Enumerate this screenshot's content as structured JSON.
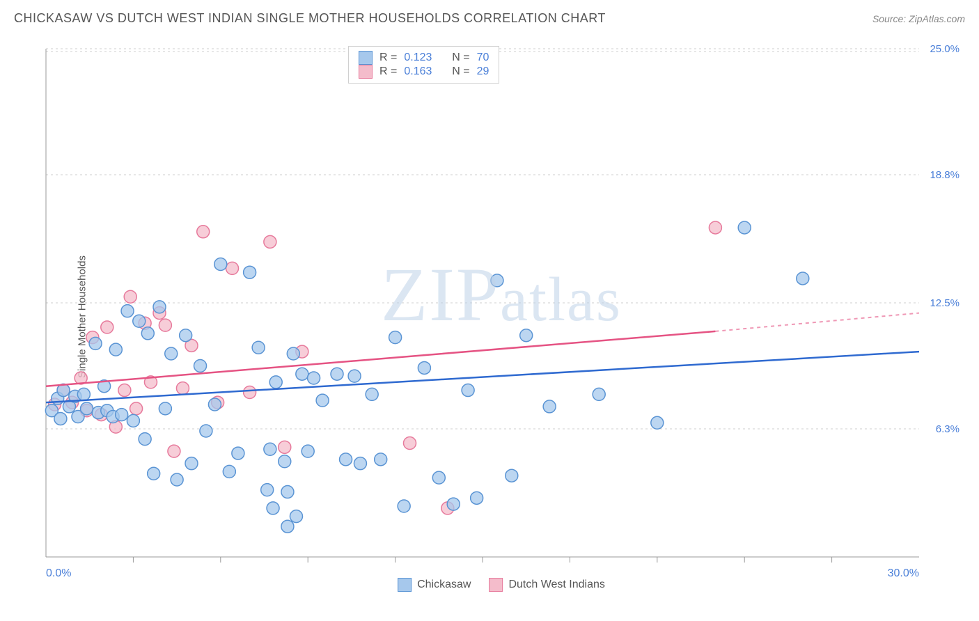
{
  "header": {
    "title": "CHICKASAW VS DUTCH WEST INDIAN SINGLE MOTHER HOUSEHOLDS CORRELATION CHART",
    "source_label": "Source: ",
    "source_name": "ZipAtlas.com"
  },
  "chart": {
    "type": "scatter",
    "ylabel": "Single Mother Households",
    "watermark": "ZIPatlas",
    "background_color": "#ffffff",
    "grid_color": "#cfcfcf",
    "axis_color": "#999999",
    "marker_radius": 9,
    "xlim": [
      0,
      30
    ],
    "ylim": [
      0,
      25
    ],
    "xticks_minor": [
      3,
      6,
      9,
      12,
      15,
      18,
      21,
      24,
      27
    ],
    "xtick_labels": [
      {
        "v": 0,
        "label": "0.0%"
      },
      {
        "v": 30,
        "label": "30.0%"
      }
    ],
    "ytick_labels": [
      {
        "v": 6.3,
        "label": "6.3%"
      },
      {
        "v": 12.5,
        "label": "12.5%"
      },
      {
        "v": 18.8,
        "label": "18.8%"
      },
      {
        "v": 25.0,
        "label": "25.0%"
      }
    ],
    "series": [
      {
        "id": "chickasaw",
        "label": "Chickasaw",
        "color_fill": "#a6c8ec",
        "color_stroke": "#5a94d4",
        "line_color": "#2f6ad0",
        "r_value": "0.123",
        "n_value": "70",
        "trend": {
          "x0": 0,
          "y0": 7.6,
          "x1": 30,
          "y1": 10.1
        },
        "points": [
          [
            0.2,
            7.2
          ],
          [
            0.4,
            7.8
          ],
          [
            0.5,
            6.8
          ],
          [
            0.6,
            8.2
          ],
          [
            0.8,
            7.4
          ],
          [
            1.0,
            7.9
          ],
          [
            1.1,
            6.9
          ],
          [
            1.3,
            8.0
          ],
          [
            1.4,
            7.3
          ],
          [
            1.7,
            10.5
          ],
          [
            1.8,
            7.1
          ],
          [
            2.0,
            8.4
          ],
          [
            2.1,
            7.2
          ],
          [
            2.3,
            6.9
          ],
          [
            2.4,
            10.2
          ],
          [
            2.6,
            7.0
          ],
          [
            2.8,
            12.1
          ],
          [
            3.0,
            6.7
          ],
          [
            3.2,
            11.6
          ],
          [
            3.4,
            5.8
          ],
          [
            3.5,
            11.0
          ],
          [
            3.7,
            4.1
          ],
          [
            3.9,
            12.3
          ],
          [
            4.1,
            7.3
          ],
          [
            4.3,
            10.0
          ],
          [
            4.5,
            3.8
          ],
          [
            4.8,
            10.9
          ],
          [
            5.0,
            4.6
          ],
          [
            5.3,
            9.4
          ],
          [
            5.5,
            6.2
          ],
          [
            5.8,
            7.5
          ],
          [
            6.0,
            14.4
          ],
          [
            6.3,
            4.2
          ],
          [
            6.6,
            5.1
          ],
          [
            7.0,
            14.0
          ],
          [
            7.3,
            10.3
          ],
          [
            7.7,
            5.3
          ],
          [
            7.8,
            2.4
          ],
          [
            7.9,
            8.6
          ],
          [
            8.2,
            4.7
          ],
          [
            8.3,
            1.5
          ],
          [
            8.3,
            3.2
          ],
          [
            8.5,
            10.0
          ],
          [
            8.6,
            2.0
          ],
          [
            8.8,
            9.0
          ],
          [
            9.0,
            5.2
          ],
          [
            9.2,
            8.8
          ],
          [
            9.5,
            7.7
          ],
          [
            10.0,
            9.0
          ],
          [
            10.3,
            4.8
          ],
          [
            10.6,
            8.9
          ],
          [
            10.8,
            4.6
          ],
          [
            11.2,
            8.0
          ],
          [
            11.5,
            4.8
          ],
          [
            12.0,
            10.8
          ],
          [
            12.3,
            2.5
          ],
          [
            13.0,
            9.3
          ],
          [
            13.5,
            3.9
          ],
          [
            14.0,
            2.6
          ],
          [
            14.5,
            8.2
          ],
          [
            15.5,
            13.6
          ],
          [
            16.0,
            4.0
          ],
          [
            16.5,
            10.9
          ],
          [
            17.3,
            7.4
          ],
          [
            19.0,
            8.0
          ],
          [
            21.0,
            6.6
          ],
          [
            24.0,
            16.2
          ],
          [
            26.0,
            13.7
          ],
          [
            14.8,
            2.9
          ],
          [
            7.6,
            3.3
          ]
        ]
      },
      {
        "id": "dutch",
        "label": "Dutch West Indians",
        "color_fill": "#f4bccb",
        "color_stroke": "#e77a9c",
        "line_color": "#e55383",
        "r_value": "0.163",
        "n_value": "29",
        "trend": {
          "x0": 0,
          "y0": 8.4,
          "x1": 23,
          "y1": 11.1,
          "x2": 30,
          "y2": 12.0
        },
        "points": [
          [
            0.3,
            7.5
          ],
          [
            0.6,
            8.2
          ],
          [
            0.9,
            7.6
          ],
          [
            1.2,
            8.8
          ],
          [
            1.4,
            7.2
          ],
          [
            1.6,
            10.8
          ],
          [
            1.9,
            7.0
          ],
          [
            2.1,
            11.3
          ],
          [
            2.4,
            6.4
          ],
          [
            2.7,
            8.2
          ],
          [
            2.9,
            12.8
          ],
          [
            3.1,
            7.3
          ],
          [
            3.4,
            11.5
          ],
          [
            3.6,
            8.6
          ],
          [
            3.9,
            12.0
          ],
          [
            4.1,
            11.4
          ],
          [
            4.4,
            5.2
          ],
          [
            4.7,
            8.3
          ],
          [
            5.0,
            10.4
          ],
          [
            5.4,
            16.0
          ],
          [
            5.9,
            7.6
          ],
          [
            6.4,
            14.2
          ],
          [
            7.0,
            8.1
          ],
          [
            7.7,
            15.5
          ],
          [
            8.2,
            5.4
          ],
          [
            8.8,
            10.1
          ],
          [
            12.5,
            5.6
          ],
          [
            13.8,
            2.4
          ],
          [
            23.0,
            16.2
          ]
        ]
      }
    ],
    "legend_top": {
      "r_label": "R =",
      "n_label": "N ="
    },
    "legend_bottom_labels": [
      "Chickasaw",
      "Dutch West Indians"
    ]
  }
}
